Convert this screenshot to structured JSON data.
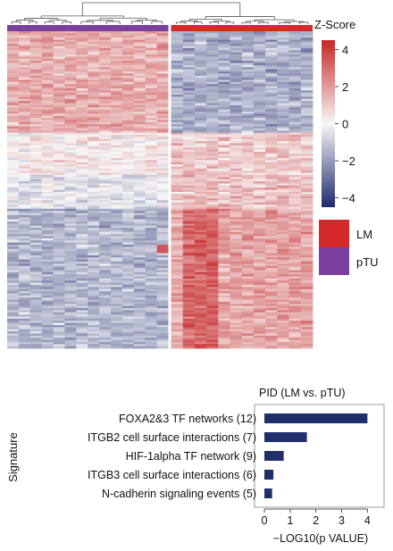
{
  "chart_data": [
    {
      "type": "heatmap",
      "column_groups": [
        {
          "name": "pTU",
          "color": "#7B3F9E",
          "columns": 14
        },
        {
          "name": "LM",
          "color": "#D42A2A",
          "columns": 12
        }
      ],
      "row_count": 150,
      "colorbar": {
        "title": "Z-Score",
        "ticks": [
          "4",
          "2",
          "0",
          "−2",
          "−4"
        ],
        "tick_values": [
          4,
          2,
          0,
          -2,
          -4
        ],
        "range": [
          -4.5,
          4.5
        ],
        "colors": {
          "low": "#1F2A6E",
          "mid": "#F7F7F7",
          "high": "#C62828"
        }
      },
      "legend": [
        {
          "label": "LM",
          "color": "#D42A2A"
        },
        {
          "label": "pTU",
          "color": "#7B3F9E"
        }
      ],
      "block_pattern": {
        "row_blocks": [
          {
            "rows": 48,
            "pTU_mean": 1.6,
            "LM_mean": -1.6
          },
          {
            "rows": 20,
            "pTU_mean": 0.3,
            "LM_mean": 1.0
          },
          {
            "rows": 16,
            "pTU_mean": -0.4,
            "LM_mean": 1.2
          },
          {
            "rows": 66,
            "pTU_mean": -1.4,
            "LM_mean": 1.8
          }
        ]
      }
    },
    {
      "type": "bar",
      "orientation": "horizontal",
      "title": "PID (LM vs. pTU)",
      "ylabel": "Signature",
      "xlabel": "−LOG10(p VALUE)",
      "categories": [
        "FOXA2&3 TF networks (12)",
        "ITGB2 cell surface interactions (7)",
        "HIF-1alpha TF network (9)",
        "ITGB3 cell surface interactions (6)",
        "N-cadherin signaling events (5)"
      ],
      "values": [
        4.0,
        1.65,
        0.75,
        0.35,
        0.3
      ],
      "xlim": [
        0,
        4.3
      ],
      "xticks": [
        "0",
        "1",
        "2",
        "3",
        "4"
      ],
      "bar_color": "#1E2F6B"
    }
  ]
}
